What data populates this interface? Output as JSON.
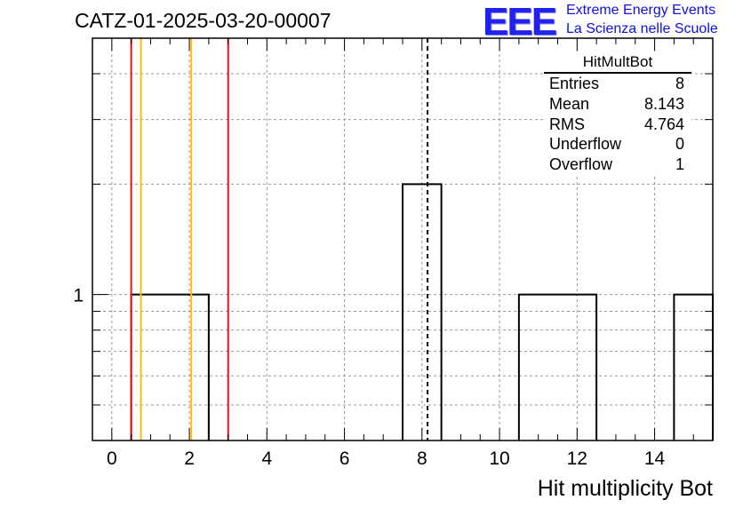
{
  "header": {
    "run_title": "CATZ-01-2025-03-20-00007",
    "logo_text": "EEE",
    "logo_line1": "Extreme Energy Events",
    "logo_line2": "La Scienza nelle Scuole"
  },
  "stats_box": {
    "title": "HitMultBot",
    "rows": [
      {
        "label": "Entries",
        "value": "8"
      },
      {
        "label": "Mean",
        "value": "8.143"
      },
      {
        "label": "RMS",
        "value": "4.764"
      },
      {
        "label": "Underflow",
        "value": "0"
      },
      {
        "label": "Overflow",
        "value": "1"
      }
    ]
  },
  "colors": {
    "red_line": "#ee1111",
    "orange_line": "#ffbb00",
    "grid": "#999999"
  },
  "chart_data": {
    "type": "bar",
    "histogram": true,
    "xlabel": "Hit multiplicity Bot",
    "ylabel": "",
    "xlim": [
      -0.5,
      15.5
    ],
    "ylim_log": [
      0.4,
      5
    ],
    "log_y": true,
    "grid": true,
    "x_ticks": [
      "0",
      "2",
      "4",
      "6",
      "8",
      "10",
      "12",
      "14"
    ],
    "x_tick_values": [
      0,
      2,
      4,
      6,
      8,
      10,
      12,
      14
    ],
    "y_ticks": [
      "1"
    ],
    "y_tick_values": [
      1
    ],
    "bins": [
      {
        "low": 0.5,
        "high": 2.5,
        "value": 1
      },
      {
        "low": 7.5,
        "high": 8.5,
        "value": 2
      },
      {
        "low": 10.5,
        "high": 12.5,
        "value": 1
      },
      {
        "low": 14.5,
        "high": 15.5,
        "value": 1
      }
    ],
    "vertical_lines": [
      {
        "x": 0.5,
        "color": "red",
        "style": "solid"
      },
      {
        "x": 3.0,
        "color": "red",
        "style": "solid"
      },
      {
        "x": 0.75,
        "color": "orange",
        "style": "solid"
      },
      {
        "x": 2.05,
        "color": "orange",
        "style": "solid"
      },
      {
        "x": 8.143,
        "color": "black",
        "style": "dashed"
      }
    ]
  }
}
